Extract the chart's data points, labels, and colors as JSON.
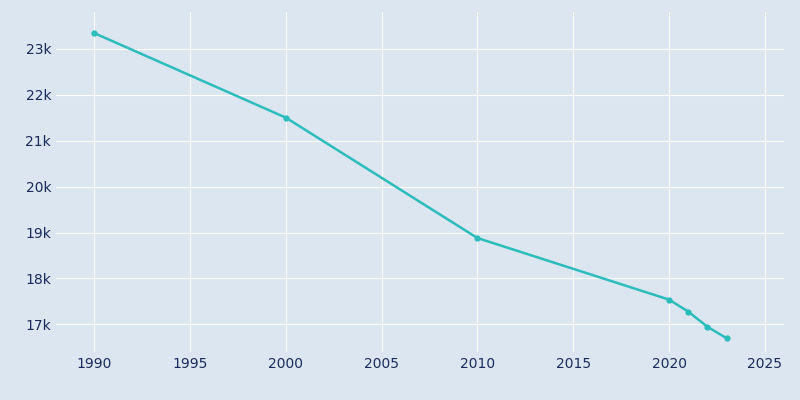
{
  "years": [
    1990,
    2000,
    2010,
    2020,
    2021,
    2022,
    2023
  ],
  "population": [
    23340,
    21500,
    18880,
    17540,
    17280,
    16950,
    16700
  ],
  "line_color": "#2bbcbc",
  "marker_color": "#2bbcbc",
  "background_color": "#dce6f0",
  "plot_background": "#dce6f0",
  "grid_color": "#ffffff",
  "tick_color": "#1a2a5a",
  "xlim": [
    1988,
    2026
  ],
  "ylim": [
    16400,
    23800
  ],
  "xticks": [
    1990,
    1995,
    2000,
    2005,
    2010,
    2015,
    2020,
    2025
  ],
  "ytick_values": [
    17000,
    18000,
    19000,
    20000,
    21000,
    22000,
    23000
  ],
  "ytick_labels": [
    "17k",
    "18k",
    "19k",
    "20k",
    "21k",
    "22k",
    "23k"
  ],
  "line_width": 1.8,
  "marker_size": 3.5
}
